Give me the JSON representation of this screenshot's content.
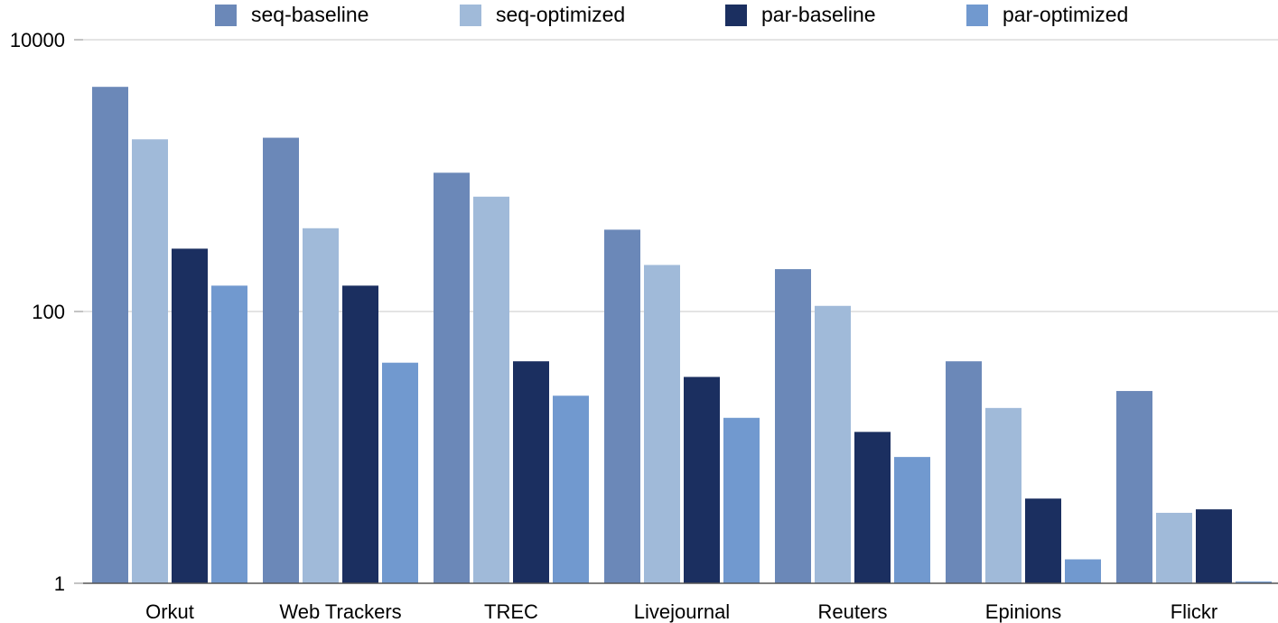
{
  "chart_data": {
    "type": "bar",
    "title": "",
    "xlabel": "",
    "ylabel": "",
    "yscale": "log",
    "ylim": [
      1,
      10000
    ],
    "yticks": [
      {
        "value": 1,
        "label": "1"
      },
      {
        "value": 100,
        "label": "100"
      },
      {
        "value": 10000,
        "label": "10000"
      }
    ],
    "grid": true,
    "legend_position": "top",
    "categories": [
      "Orkut",
      "Web Trackers",
      "TREC",
      "Livejournal",
      "Reuters",
      "Epinions",
      "Flickr"
    ],
    "series": [
      {
        "name": "seq-baseline",
        "color": "#6b88b8",
        "values": [
          4500,
          1900,
          1050,
          400,
          205,
          43,
          26
        ]
      },
      {
        "name": "seq-optimized",
        "color": "#a0bad9",
        "values": [
          1850,
          410,
          700,
          220,
          110,
          19.5,
          3.3
        ]
      },
      {
        "name": "par-baseline",
        "color": "#1b2f60",
        "values": [
          290,
          155,
          43,
          33,
          13,
          4.2,
          3.5
        ]
      },
      {
        "name": "par-optimized",
        "color": "#7199cf",
        "values": [
          155,
          42,
          24,
          16.5,
          8.5,
          1.5,
          1.03
        ]
      }
    ]
  }
}
